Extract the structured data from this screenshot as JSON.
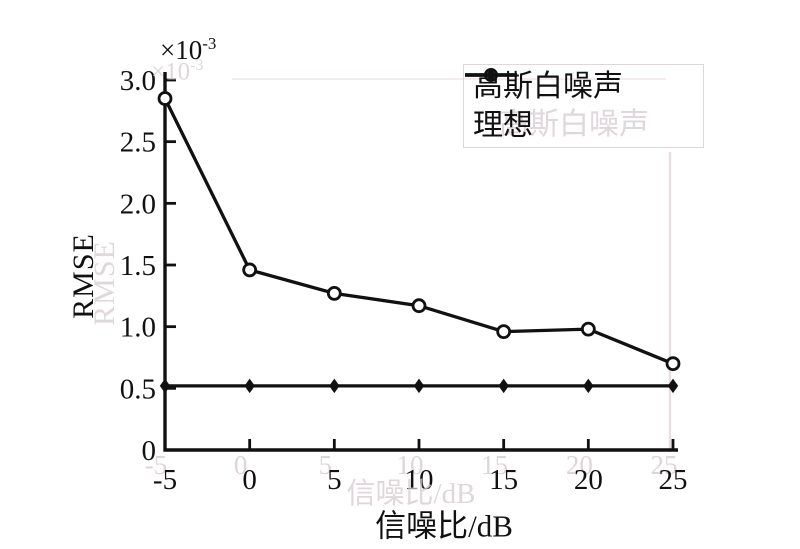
{
  "figure": {
    "background": "#ffffff",
    "ink_color": "#111111",
    "ghost_color": "#d3cad0"
  },
  "chart_data": {
    "type": "line",
    "title": "",
    "xlabel": "信噪比/dB",
    "ylabel": "RMSE",
    "y_unit_base": "×10",
    "y_unit_exp": "-3",
    "y_values_unit": "1e-3",
    "x": [
      -5,
      0,
      5,
      10,
      15,
      20,
      25
    ],
    "x_tick_labels": [
      "-5",
      "0",
      "5",
      "10",
      "15",
      "20",
      "25"
    ],
    "y_ticks": [
      0,
      0.5,
      1.0,
      1.5,
      2.0,
      2.5,
      3.0
    ],
    "y_tick_labels": [
      "0",
      "0.5",
      "1.0",
      "1.5",
      "2.0",
      "2.5",
      "3.0"
    ],
    "xlim": [
      -5,
      25
    ],
    "ylim": [
      0,
      3.0
    ],
    "grid": false,
    "legend_position": "top-right",
    "series": [
      {
        "name": "高斯白噪声",
        "marker": "circle",
        "line": "solid",
        "color": "#111111",
        "values": [
          2.85,
          1.46,
          1.27,
          1.17,
          0.96,
          0.98,
          0.7
        ]
      },
      {
        "name": "理想",
        "marker": "diamond",
        "line": "solid",
        "color": "#111111",
        "values": [
          0.52,
          0.52,
          0.52,
          0.52,
          0.52,
          0.52,
          0.52
        ]
      }
    ]
  }
}
